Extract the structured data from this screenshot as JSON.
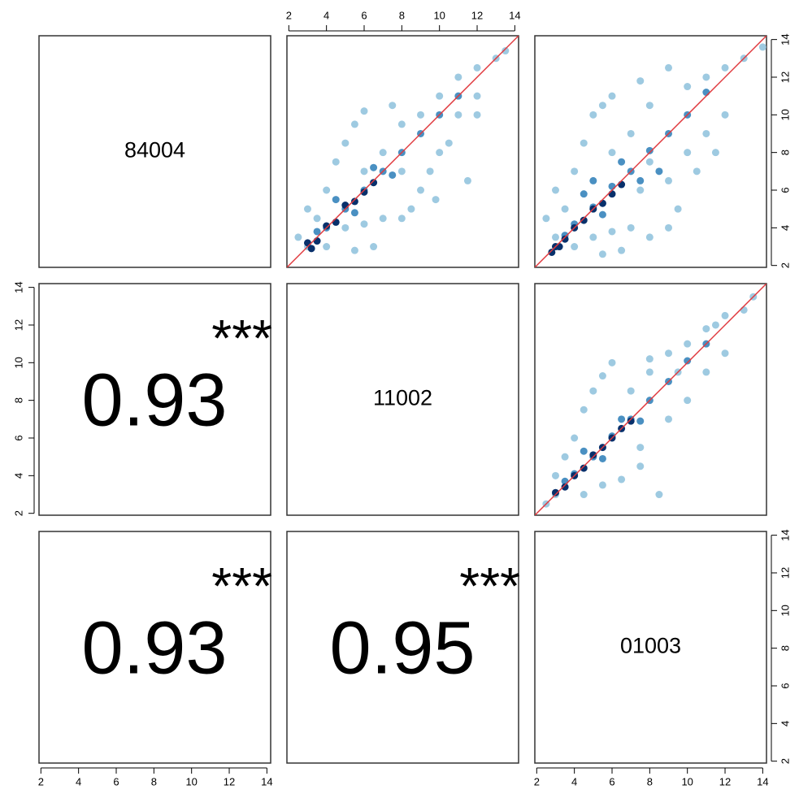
{
  "chart_data": {
    "type": "pairs",
    "variables": [
      "84004",
      "11002",
      "01003"
    ],
    "xlim": [
      1.9,
      14.2
    ],
    "ylim": [
      1.9,
      14.2
    ],
    "ticks": [
      2,
      4,
      6,
      8,
      10,
      12,
      14
    ],
    "reference_line_color": "#e0393e",
    "correlation_color": "#000000",
    "stars_color": "#ff0000",
    "lower": [
      {
        "value": 0.93,
        "stars": "***"
      },
      {
        "value": 0.93,
        "stars": "***"
      },
      {
        "value": 0.95,
        "stars": "***"
      }
    ],
    "scatter": [
      {
        "series": [
          {
            "color": "#9ecae1",
            "x": [
              3,
              3.5,
              4,
              4.5,
              5,
              5.5,
              6,
              4,
              5,
              6,
              7,
              8,
              8.5,
              9,
              7,
              8,
              9,
              10,
              11,
              12,
              13,
              9.5,
              10,
              11,
              12,
              6.5,
              5.5,
              3,
              2.5,
              7.5,
              10.5,
              11.5,
              12,
              8,
              6,
              13.5,
              9.8
            ],
            "values": [
              3,
              4.5,
              6,
              7.5,
              8.5,
              9.5,
              10.2,
              3,
              4,
              4.2,
              4.5,
              4.5,
              5,
              6,
              8,
              9.5,
              10,
              11,
              12,
              12.5,
              13,
              7,
              8,
              10,
              11,
              3,
              2.8,
              5,
              3.5,
              10.5,
              8.5,
              6.5,
              10,
              7,
              7,
              13.4,
              5.5
            ]
          },
          {
            "color": "#4a90c2",
            "x": [
              4,
              5,
              6,
              7,
              8,
              9,
              10,
              4.5,
              5.5,
              6.5,
              7.5,
              11,
              3.5
            ],
            "values": [
              4,
              5,
              6,
              7,
              8,
              9,
              10,
              5.5,
              4.8,
              7.2,
              6.8,
              11,
              3.8
            ]
          },
          {
            "color": "#08306b",
            "x": [
              3,
              3.5,
              4,
              4.5,
              5,
              5.5,
              6,
              6.5,
              3.2
            ],
            "values": [
              3.2,
              3.3,
              4.1,
              4.3,
              5.2,
              5.4,
              5.9,
              6.4,
              2.9
            ]
          }
        ]
      },
      {
        "series": [
          {
            "color": "#9ecae1",
            "x": [
              3,
              3.5,
              4,
              4.5,
              5,
              5.5,
              6,
              4,
              5,
              6,
              7,
              8,
              9,
              9.5,
              7,
              8,
              9,
              10,
              11,
              12,
              13,
              10,
              11,
              12,
              6.5,
              5.5,
              2.5,
              3,
              7.5,
              10.5,
              11.5,
              8,
              6,
              14,
              7.5,
              9
            ],
            "values": [
              3.5,
              5,
              7,
              8.5,
              10,
              10.5,
              11,
              3,
              3.5,
              3.8,
              4,
              3.5,
              4,
              5,
              9,
              10.5,
              12.5,
              11.5,
              12,
              12.5,
              13,
              8,
              9,
              10,
              2.8,
              2.6,
              4.5,
              6,
              11.8,
              7,
              8,
              7.5,
              8,
              13.6,
              6,
              6.5
            ]
          },
          {
            "color": "#4a90c2",
            "x": [
              4,
              5,
              6,
              7,
              8,
              9,
              10,
              4.5,
              5.5,
              6.5,
              7.5,
              11,
              3.5,
              5,
              8.5
            ],
            "values": [
              4.2,
              5.1,
              6.2,
              7,
              8.1,
              9,
              10,
              5.8,
              4.7,
              7.5,
              6.5,
              11.2,
              3.6,
              6.5,
              7
            ]
          },
          {
            "color": "#08306b",
            "x": [
              3,
              3.5,
              4,
              4.5,
              5,
              5.5,
              6,
              6.5,
              3.2,
              2.8
            ],
            "values": [
              3,
              3.4,
              4,
              4.4,
              5,
              5.3,
              5.8,
              6.3,
              3,
              2.7
            ]
          }
        ]
      },
      {
        "series": [
          {
            "color": "#9ecae1",
            "x": [
              3,
              3.5,
              4,
              4.5,
              5,
              5.5,
              6,
              4.5,
              5.5,
              6.5,
              7.5,
              8.5,
              7,
              8,
              9,
              10,
              11,
              12,
              13,
              9,
              10,
              11,
              12,
              2.5,
              3,
              8,
              9.5,
              11.5,
              13.5,
              7.5
            ],
            "values": [
              4,
              5,
              6,
              7.5,
              8.5,
              9.3,
              10,
              3,
              3.5,
              3.8,
              4.5,
              3,
              8.5,
              9.5,
              10.5,
              11,
              11.8,
              12.5,
              12.8,
              7,
              8,
              9.5,
              10.5,
              2.5,
              3,
              10.2,
              9.5,
              12,
              13.5,
              5.5
            ]
          },
          {
            "color": "#4a90c2",
            "x": [
              4,
              5,
              6,
              7,
              8,
              9,
              10,
              4.5,
              5.5,
              6.5,
              7.5,
              11,
              3.5
            ],
            "values": [
              4.1,
              5,
              6.1,
              7,
              8,
              9,
              10.1,
              5.3,
              4.9,
              7,
              6.9,
              11,
              3.7
            ]
          },
          {
            "color": "#08306b",
            "x": [
              3,
              3.5,
              4,
              4.5,
              5,
              5.5,
              6,
              6.5,
              7
            ],
            "values": [
              3.1,
              3.4,
              4,
              4.4,
              5.1,
              5.5,
              6,
              6.5,
              6.9
            ]
          }
        ]
      }
    ]
  }
}
